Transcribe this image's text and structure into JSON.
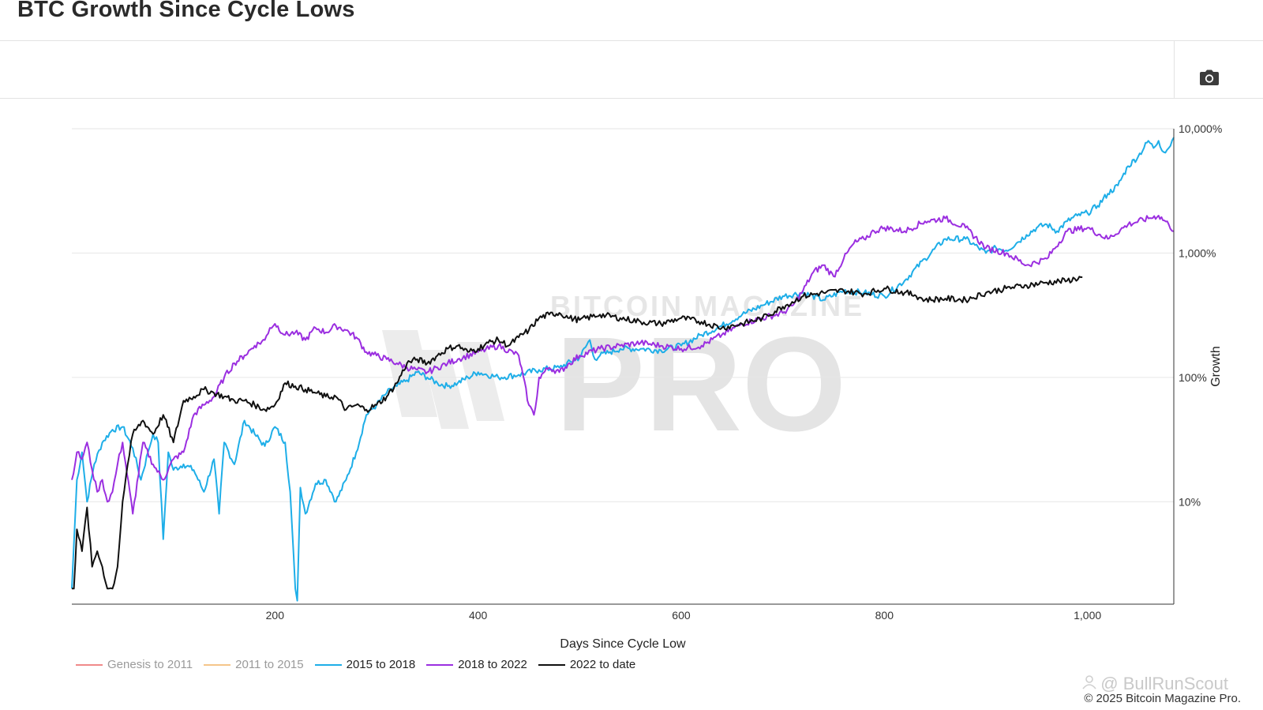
{
  "title": "BTC Growth Since Cycle Lows",
  "toolbar": {
    "camera_icon": "camera-icon"
  },
  "copyright": "© 2025 Bitcoin Magazine Pro.",
  "overlay_watermark": {
    "icon": "user-icon",
    "text": "@ BullRunScout"
  },
  "brand_watermark": {
    "top": "BITCOIN MAGAZINE",
    "main": "PRO"
  },
  "chart_data": {
    "type": "line",
    "title": "BTC Growth Since Cycle Lows",
    "xlabel": "Days Since Cycle Low",
    "ylabel": "Growth",
    "xlim": [
      0,
      1085
    ],
    "ylim": [
      1.5,
      10000
    ],
    "y_scale": "log",
    "x_ticks": [
      200,
      400,
      600,
      800,
      1000
    ],
    "x_tick_labels": [
      "200",
      "400",
      "600",
      "800",
      "1,000"
    ],
    "y_ticks": [
      10,
      100,
      1000,
      10000
    ],
    "y_tick_labels": [
      "10%",
      "100%",
      "1,000%",
      "10,000%"
    ],
    "grid": true,
    "legend_position": "bottom-left",
    "series": [
      {
        "name": "Genesis to 2011",
        "color": "#f08a8a",
        "visible": false,
        "x": [],
        "y": []
      },
      {
        "name": "2011 to 2015",
        "color": "#f5c58a",
        "visible": false,
        "x": [],
        "y": []
      },
      {
        "name": "2015 to 2018",
        "color": "#1eaee8",
        "visible": true,
        "x": [
          0,
          5,
          10,
          15,
          22,
          30,
          40,
          50,
          60,
          68,
          75,
          80,
          85,
          90,
          95,
          100,
          110,
          120,
          130,
          140,
          145,
          150,
          160,
          170,
          180,
          190,
          200,
          210,
          215,
          220,
          222,
          225,
          230,
          240,
          250,
          260,
          270,
          280,
          290,
          300,
          310,
          320,
          330,
          340,
          350,
          360,
          370,
          380,
          390,
          400,
          420,
          440,
          460,
          480,
          500,
          510,
          515,
          520,
          530,
          540,
          560,
          580,
          600,
          620,
          640,
          660,
          680,
          700,
          720,
          740,
          760,
          780,
          800,
          820,
          840,
          860,
          880,
          900,
          910,
          920,
          930,
          940,
          950,
          960,
          970,
          980,
          990,
          1000,
          1010,
          1020,
          1030,
          1040,
          1050,
          1060,
          1065,
          1070,
          1075,
          1080,
          1085
        ],
        "y": [
          2,
          15,
          25,
          10,
          20,
          30,
          38,
          40,
          27,
          15,
          25,
          35,
          30,
          5,
          25,
          18,
          20,
          18,
          12,
          22,
          8,
          30,
          20,
          45,
          35,
          28,
          40,
          30,
          12,
          2,
          1.6,
          13,
          8,
          14,
          15,
          10,
          15,
          25,
          50,
          60,
          75,
          85,
          95,
          110,
          100,
          90,
          85,
          90,
          100,
          110,
          100,
          105,
          115,
          120,
          145,
          200,
          140,
          150,
          160,
          170,
          170,
          165,
          180,
          220,
          260,
          320,
          380,
          450,
          480,
          420,
          500,
          480,
          450,
          600,
          900,
          1300,
          1300,
          1000,
          1100,
          1050,
          1200,
          1400,
          1600,
          1700,
          1500,
          1800,
          2000,
          2100,
          2400,
          3000,
          3500,
          5000,
          6000,
          8000,
          7000,
          8000,
          6500,
          7000,
          8500
        ]
      },
      {
        "name": "2018 to 2022",
        "color": "#9b2fe0",
        "visible": true,
        "x": [
          0,
          5,
          10,
          15,
          20,
          25,
          30,
          35,
          40,
          45,
          50,
          60,
          70,
          80,
          90,
          100,
          110,
          120,
          130,
          140,
          150,
          160,
          170,
          180,
          190,
          195,
          200,
          210,
          220,
          230,
          240,
          250,
          260,
          270,
          280,
          290,
          300,
          310,
          320,
          330,
          340,
          350,
          360,
          370,
          380,
          400,
          420,
          440,
          450,
          455,
          458,
          460,
          470,
          480,
          490,
          500,
          520,
          540,
          560,
          580,
          600,
          620,
          640,
          660,
          680,
          700,
          710,
          720,
          730,
          740,
          750,
          760,
          770,
          780,
          790,
          800,
          820,
          840,
          860,
          880,
          900,
          920,
          940,
          960,
          980,
          1000,
          1020,
          1040,
          1060,
          1070,
          1080,
          1085
        ],
        "y": [
          15,
          25,
          22,
          30,
          18,
          12,
          15,
          10,
          12,
          20,
          30,
          8,
          30,
          20,
          15,
          22,
          25,
          50,
          60,
          70,
          100,
          130,
          150,
          180,
          200,
          250,
          270,
          220,
          230,
          200,
          250,
          230,
          260,
          240,
          210,
          160,
          150,
          140,
          130,
          120,
          115,
          110,
          120,
          130,
          140,
          160,
          180,
          150,
          60,
          50,
          70,
          100,
          120,
          110,
          130,
          150,
          170,
          180,
          190,
          180,
          170,
          180,
          220,
          270,
          300,
          330,
          380,
          500,
          700,
          800,
          650,
          900,
          1200,
          1300,
          1500,
          1600,
          1500,
          1800,
          1900,
          1600,
          1100,
          1000,
          800,
          900,
          1500,
          1600,
          1300,
          1700,
          1900,
          2000,
          1700,
          1500
        ]
      },
      {
        "name": "2022 to date",
        "color": "#111111",
        "visible": true,
        "x": [
          0,
          2,
          5,
          10,
          15,
          20,
          25,
          30,
          35,
          40,
          45,
          50,
          55,
          60,
          70,
          80,
          90,
          100,
          110,
          120,
          130,
          140,
          150,
          160,
          170,
          180,
          190,
          200,
          210,
          220,
          230,
          240,
          250,
          260,
          270,
          280,
          290,
          300,
          310,
          320,
          330,
          340,
          350,
          360,
          370,
          380,
          390,
          400,
          410,
          420,
          430,
          440,
          450,
          460,
          470,
          480,
          490,
          500,
          520,
          540,
          560,
          580,
          600,
          620,
          640,
          660,
          680,
          700,
          720,
          740,
          760,
          780,
          800,
          820,
          830,
          840,
          860,
          880,
          900,
          920,
          940,
          960,
          980,
          995
        ],
        "y": [
          2,
          2,
          6,
          4,
          9,
          3,
          4,
          3,
          2,
          2,
          3,
          10,
          20,
          35,
          45,
          35,
          50,
          30,
          65,
          70,
          80,
          75,
          70,
          65,
          65,
          60,
          55,
          60,
          90,
          85,
          80,
          75,
          70,
          70,
          55,
          60,
          55,
          60,
          70,
          90,
          130,
          140,
          130,
          150,
          170,
          180,
          160,
          170,
          190,
          200,
          180,
          210,
          240,
          300,
          320,
          330,
          300,
          290,
          320,
          300,
          280,
          270,
          300,
          280,
          250,
          270,
          300,
          370,
          450,
          480,
          500,
          470,
          520,
          480,
          460,
          420,
          430,
          420,
          480,
          520,
          550,
          580,
          600,
          640
        ]
      }
    ]
  }
}
